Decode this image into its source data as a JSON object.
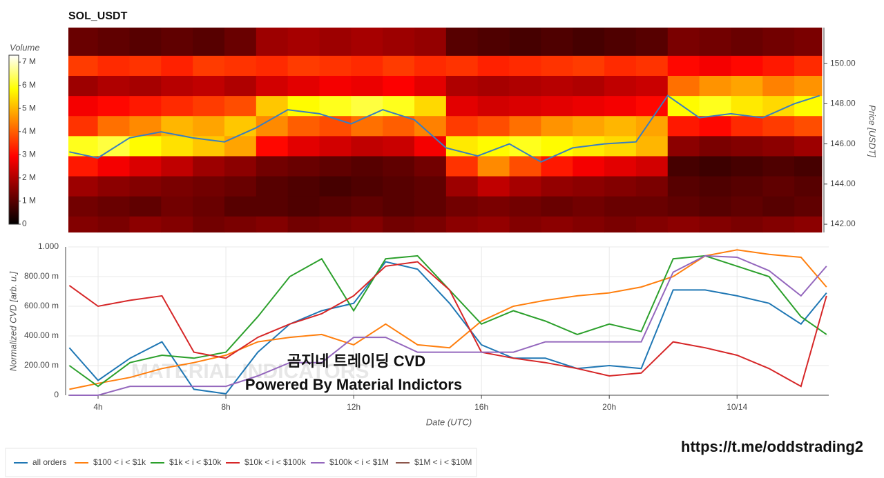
{
  "chart_data": [
    {
      "type": "heatmap",
      "title": "SOL_USDT",
      "time_bins": [
        3.07,
        4,
        5,
        6,
        7,
        8,
        9,
        10,
        11,
        12,
        13,
        14,
        15,
        16,
        17,
        18,
        19,
        20,
        21,
        22,
        23,
        24,
        25,
        26,
        26.87
      ],
      "price_bins": [
        141.6,
        142.4,
        143.4,
        144.4,
        145.4,
        146.4,
        147.4,
        148.4,
        149.4,
        150.4,
        151.79
      ],
      "values": [
        [
          1.5,
          1.3,
          1.8,
          3.2,
          6.0,
          3.5,
          2.8,
          1.8,
          3.6,
          1.2
        ],
        [
          1.4,
          1.2,
          1.6,
          2.8,
          6.2,
          4.2,
          3.0,
          2.0,
          3.4,
          1.1
        ],
        [
          1.6,
          1.1,
          1.5,
          2.5,
          5.8,
          4.5,
          3.2,
          1.9,
          3.5,
          1.0
        ],
        [
          1.5,
          1.3,
          1.4,
          2.2,
          5.5,
          5.0,
          3.4,
          2.1,
          3.3,
          1.1
        ],
        [
          1.3,
          1.2,
          1.3,
          1.8,
          5.2,
          4.8,
          3.6,
          2.2,
          3.6,
          1.0
        ],
        [
          1.4,
          1.0,
          1.2,
          1.6,
          4.8,
          5.2,
          3.8,
          2.0,
          3.5,
          1.2
        ],
        [
          1.5,
          1.0,
          1.0,
          1.3,
          3.0,
          4.5,
          5.2,
          2.4,
          3.4,
          1.8
        ],
        [
          1.3,
          0.9,
          0.9,
          1.2,
          2.6,
          4.0,
          5.8,
          2.6,
          3.6,
          1.9
        ],
        [
          1.4,
          1.0,
          0.8,
          1.1,
          2.4,
          3.8,
          6.0,
          2.8,
          3.5,
          1.8
        ],
        [
          1.5,
          1.1,
          0.9,
          1.0,
          2.2,
          4.2,
          6.2,
          2.7,
          3.4,
          1.9
        ],
        [
          1.3,
          1.0,
          1.0,
          1.1,
          2.3,
          4.0,
          6.0,
          2.9,
          3.6,
          1.8
        ],
        [
          1.4,
          1.1,
          1.1,
          1.3,
          2.8,
          4.4,
          5.4,
          2.6,
          3.4,
          1.7
        ],
        [
          1.6,
          1.3,
          1.8,
          3.5,
          5.6,
          3.6,
          2.6,
          2.0,
          3.5,
          1.0
        ],
        [
          1.7,
          1.4,
          2.2,
          4.5,
          5.8,
          3.8,
          2.4,
          1.9,
          3.3,
          0.9
        ],
        [
          1.5,
          1.3,
          1.9,
          3.8,
          6.0,
          4.2,
          2.5,
          2.0,
          3.4,
          0.8
        ],
        [
          1.6,
          1.2,
          1.7,
          3.2,
          5.8,
          4.6,
          2.6,
          2.1,
          3.5,
          0.9
        ],
        [
          1.5,
          1.3,
          1.6,
          2.8,
          5.6,
          4.8,
          2.7,
          2.0,
          3.6,
          0.8
        ],
        [
          1.4,
          1.2,
          1.5,
          2.6,
          5.4,
          5.0,
          2.8,
          2.2,
          3.4,
          0.9
        ],
        [
          1.5,
          1.2,
          1.4,
          2.4,
          5.0,
          4.8,
          3.0,
          2.3,
          3.5,
          1.0
        ],
        [
          1.6,
          1.1,
          1.0,
          0.8,
          1.6,
          3.2,
          5.8,
          4.2,
          3.0,
          1.4
        ],
        [
          1.5,
          1.0,
          0.9,
          0.7,
          1.4,
          3.0,
          6.0,
          4.6,
          2.8,
          1.3
        ],
        [
          1.4,
          1.1,
          1.0,
          0.8,
          1.5,
          3.4,
          5.6,
          4.8,
          3.0,
          1.2
        ],
        [
          1.5,
          1.0,
          1.1,
          0.9,
          1.6,
          3.6,
          5.4,
          4.4,
          3.2,
          1.3
        ],
        [
          1.6,
          1.1,
          1.0,
          0.8,
          1.8,
          3.8,
          5.8,
          4.6,
          3.4,
          1.4
        ]
      ],
      "xlim": [
        3.07,
        26.87
      ],
      "ylim": [
        141.59,
        151.79
      ],
      "yticks": [
        {
          "value": 142,
          "label": "142.00"
        },
        {
          "value": 144,
          "label": "144.00"
        },
        {
          "value": 146,
          "label": "146.00"
        },
        {
          "value": 148,
          "label": "148.00"
        },
        {
          "value": 150,
          "label": "150.00"
        }
      ],
      "y_label": "Price [USDT]",
      "colorbar": {
        "label": "Volume",
        "lim": [
          0,
          7.3
        ],
        "ticks": [
          0,
          {
            "value": 1,
            "label": "1 M"
          },
          {
            "value": 2,
            "label": "2 M"
          },
          {
            "value": 3,
            "label": "3 M"
          },
          {
            "value": 4,
            "label": "4 M"
          },
          {
            "value": 5,
            "label": "5 M"
          },
          {
            "value": 6,
            "label": "6 M"
          },
          {
            "value": 7,
            "label": "7 M"
          }
        ]
      },
      "price_line": {
        "color": "#3a7ebf",
        "x": [
          3.1,
          4,
          5,
          6,
          7,
          8,
          9,
          10,
          11,
          12,
          13,
          14,
          15,
          16,
          17,
          18,
          19,
          20,
          21,
          22,
          23,
          24,
          25,
          26,
          26.8
        ],
        "values": [
          145.6,
          145.3,
          146.3,
          146.6,
          146.3,
          146.1,
          146.8,
          147.7,
          147.5,
          147.0,
          147.7,
          147.2,
          145.8,
          145.4,
          146.0,
          145.1,
          145.8,
          146.0,
          146.1,
          148.4,
          147.3,
          147.5,
          147.3,
          148.0,
          148.4
        ]
      }
    },
    {
      "type": "line",
      "x": [
        3.1,
        4,
        5,
        6,
        7,
        8,
        9,
        10,
        11,
        12,
        13,
        14,
        15,
        16,
        17,
        18,
        19,
        20,
        21,
        22,
        23,
        24,
        25,
        26,
        26.8
      ],
      "xlim": [
        3.07,
        26.87
      ],
      "xticks": [
        {
          "value": 4,
          "label": "4h"
        },
        {
          "value": 8,
          "label": "8h"
        },
        {
          "value": 12,
          "label": "12h"
        },
        {
          "value": 16,
          "label": "16h"
        },
        {
          "value": 20,
          "label": "20h"
        },
        {
          "value": 24,
          "label": "10/14"
        }
      ],
      "ylim": [
        0,
        1
      ],
      "yticks": [
        0,
        {
          "value": 0.2,
          "label": "200.00 m"
        },
        {
          "value": 0.4,
          "label": "400.00 m"
        },
        {
          "value": 0.6,
          "label": "600.00 m"
        },
        {
          "value": 0.8,
          "label": "800.00 m"
        },
        {
          "value": 1,
          "label": "1.000"
        }
      ],
      "x_label": "Date (UTC)",
      "y_label": "Normalized CVD [arb. u.]",
      "grid": true,
      "series": [
        {
          "name": "all orders",
          "color": "#1f77b4",
          "values": [
            0.32,
            0.1,
            0.25,
            0.36,
            0.04,
            0.01,
            0.29,
            0.48,
            0.57,
            0.62,
            0.9,
            0.85,
            0.62,
            0.34,
            0.25,
            0.25,
            0.18,
            0.2,
            0.18,
            0.71,
            0.71,
            0.67,
            0.62,
            0.48,
            0.69
          ]
        },
        {
          "name": "$100 < i < $1k",
          "color": "#ff7f0e",
          "values": [
            0.04,
            0.08,
            0.12,
            0.18,
            0.22,
            0.27,
            0.36,
            0.39,
            0.41,
            0.34,
            0.48,
            0.34,
            0.32,
            0.5,
            0.6,
            0.64,
            0.67,
            0.69,
            0.73,
            0.8,
            0.94,
            0.98,
            0.95,
            0.93,
            0.73
          ]
        },
        {
          "name": "$1k < i < $10k",
          "color": "#2ca02c",
          "values": [
            0.2,
            0.06,
            0.22,
            0.27,
            0.25,
            0.29,
            0.53,
            0.8,
            0.92,
            0.57,
            0.92,
            0.94,
            0.71,
            0.48,
            0.57,
            0.5,
            0.41,
            0.48,
            0.43,
            0.92,
            0.94,
            0.87,
            0.8,
            0.53,
            0.41
          ]
        },
        {
          "name": "$10k < i < $100k",
          "color": "#d62728",
          "values": [
            0.74,
            0.6,
            0.64,
            0.67,
            0.29,
            0.25,
            0.39,
            0.48,
            0.55,
            0.67,
            0.87,
            0.9,
            0.71,
            0.29,
            0.25,
            0.22,
            0.18,
            0.13,
            0.15,
            0.36,
            0.32,
            0.27,
            0.18,
            0.06,
            0.67
          ]
        },
        {
          "name": "$100k < i < $1M",
          "color": "#9467bd",
          "values": [
            0,
            0,
            0.06,
            0.06,
            0.06,
            0.06,
            0.13,
            0.22,
            0.22,
            0.39,
            0.39,
            0.29,
            0.29,
            0.29,
            0.29,
            0.36,
            0.36,
            0.36,
            0.36,
            0.83,
            0.94,
            0.93,
            0.84,
            0.67,
            0.87
          ]
        },
        {
          "name": "$1M < i < $10M",
          "color": "#8c564b",
          "values": [
            null,
            null,
            null,
            null,
            null,
            null,
            null,
            null,
            null,
            null,
            null,
            null,
            null,
            null,
            null,
            null,
            null,
            null,
            null,
            null,
            null,
            null,
            null,
            null,
            null
          ]
        }
      ],
      "watermark": "MATERIAL INDICATORS",
      "annotations": [
        "곰지네 트레이딩 CVD",
        "Powered By Material Indictors",
        "https://t.me/oddstrading2"
      ]
    }
  ]
}
